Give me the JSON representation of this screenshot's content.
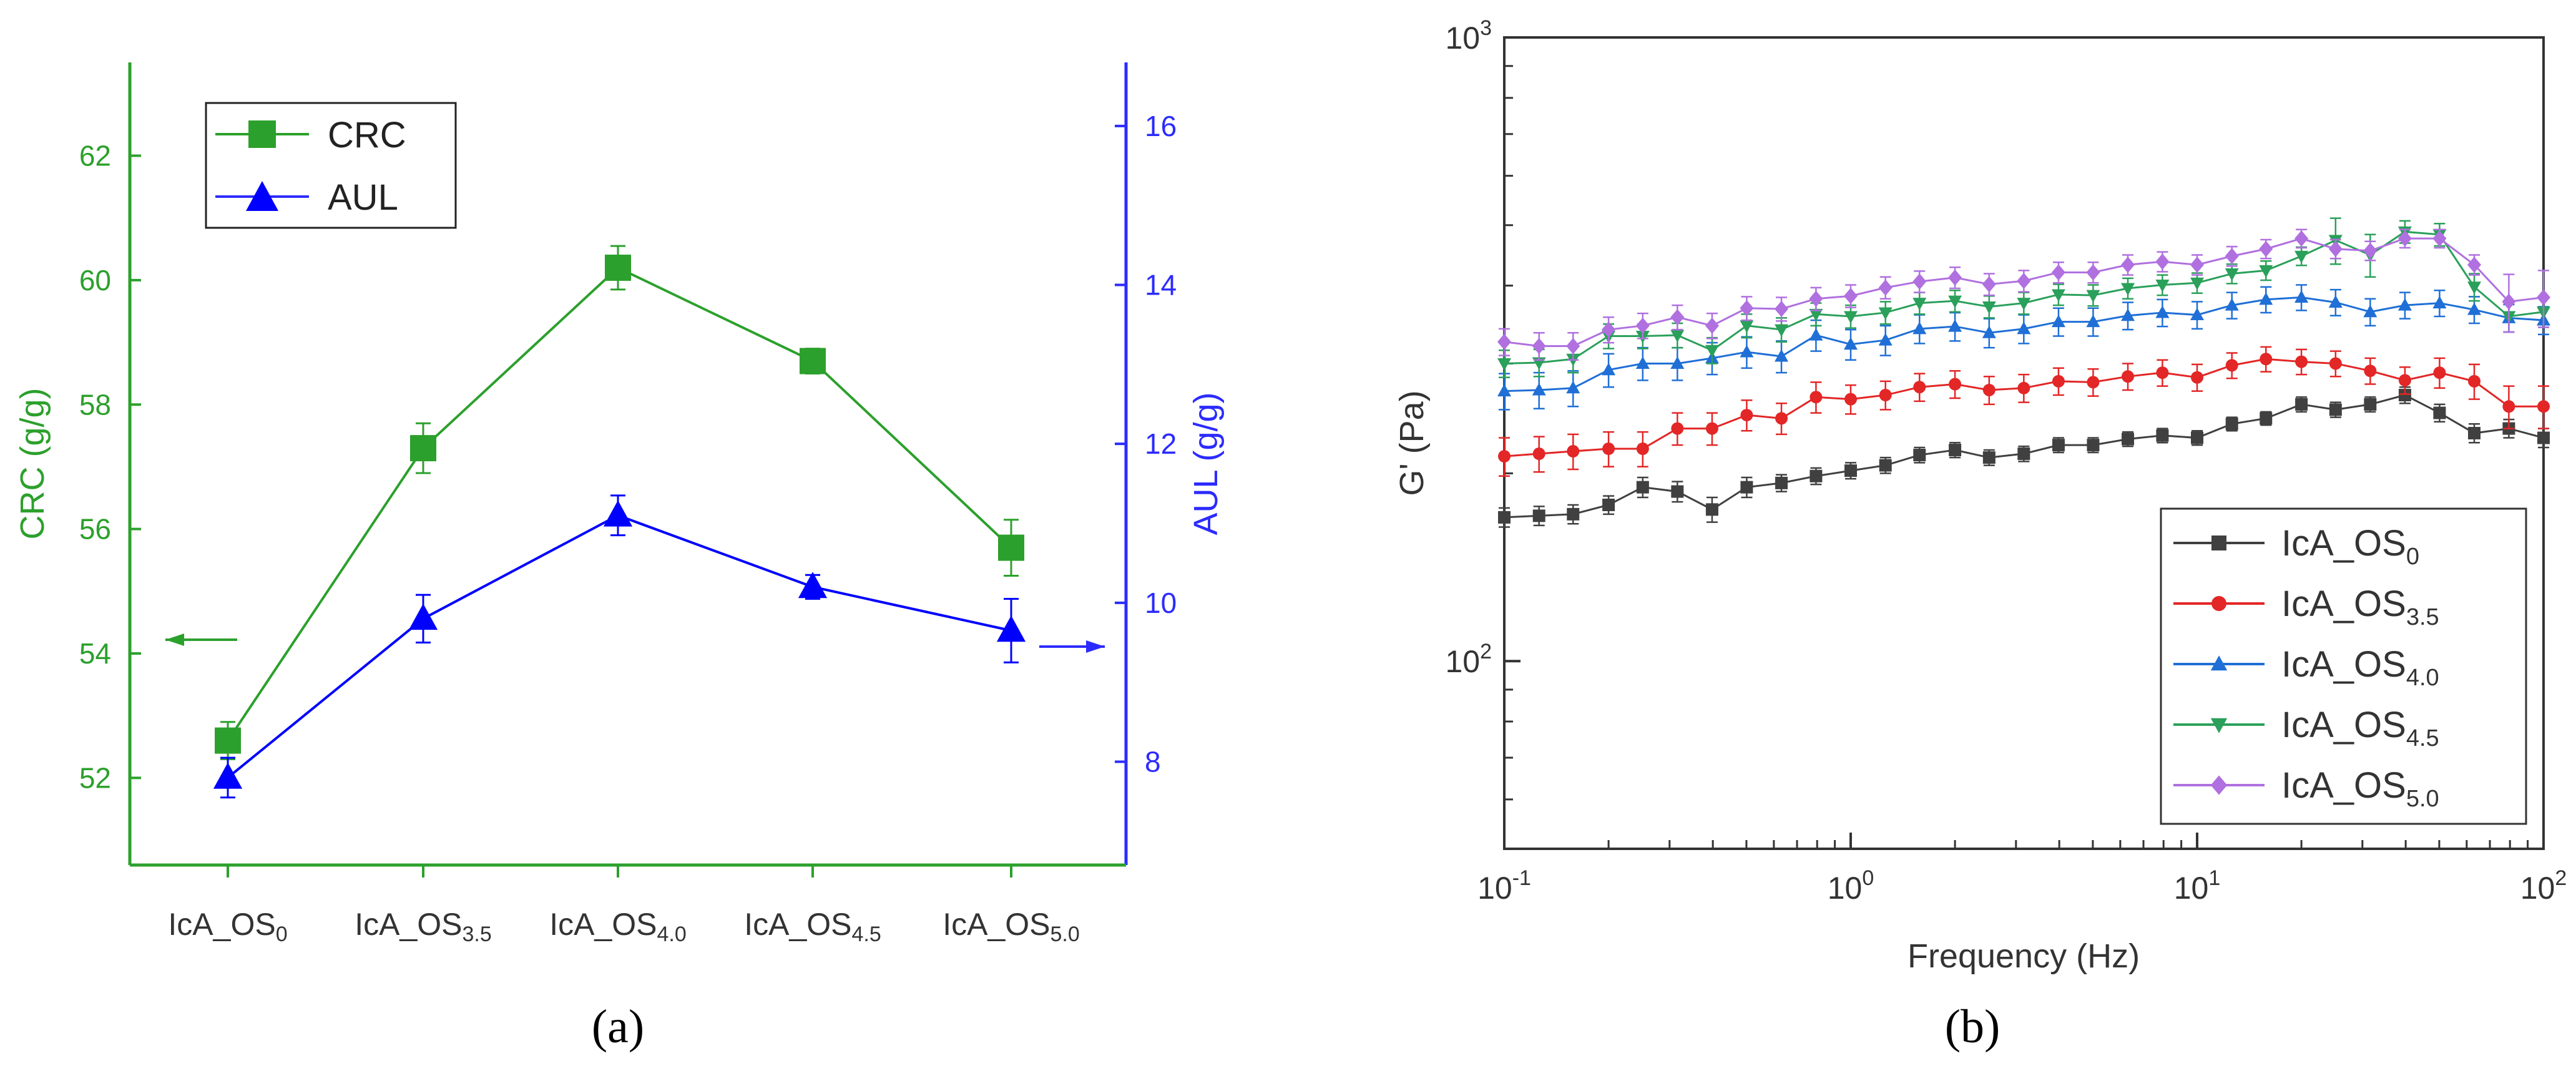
{
  "panel_labels": {
    "a": "(a)",
    "b": "(b)"
  },
  "colors": {
    "crc": "#2ca02c",
    "aul": "#0000ff",
    "aul_axis": "#2b2bff",
    "os0": "#404040",
    "os35": "#e32626",
    "os40": "#1f6fd6",
    "os45": "#2aa05a",
    "os50": "#b070e0"
  },
  "chart_data": [
    {
      "type": "line",
      "categories": [
        "IcA_OS0",
        "IcA_OS3.5",
        "IcA_OS4.0",
        "IcA_OS4.5",
        "IcA_OS5.0"
      ],
      "category_labels": [
        {
          "base": "IcA_OS",
          "sub": "0"
        },
        {
          "base": "IcA_OS",
          "sub": "3.5"
        },
        {
          "base": "IcA_OS",
          "sub": "4.0"
        },
        {
          "base": "IcA_OS",
          "sub": "4.5"
        },
        {
          "base": "IcA_OS",
          "sub": "5.0"
        }
      ],
      "y_left": {
        "label": "CRC (g/g)",
        "ylim": [
          50.6,
          63.5
        ],
        "ticks": [
          52,
          54,
          56,
          58,
          60,
          62
        ]
      },
      "y_right": {
        "label": "AUL (g/g)",
        "ylim": [
          6.7,
          16.8
        ],
        "ticks": [
          8,
          10,
          12,
          14,
          16
        ]
      },
      "series": [
        {
          "name": "CRC",
          "axis": "left",
          "marker": "square",
          "values": [
            52.6,
            57.3,
            60.2,
            58.7,
            55.7
          ],
          "errors": [
            0.3,
            0.4,
            0.35,
            0.2,
            0.45
          ]
        },
        {
          "name": "AUL",
          "axis": "right",
          "marker": "triangle",
          "values": [
            7.8,
            9.8,
            11.1,
            10.2,
            9.65
          ],
          "errors": [
            0.25,
            0.3,
            0.25,
            0.15,
            0.4
          ]
        }
      ],
      "legend": "top-left",
      "annotations": [
        "arrow-left toward CRC axis at IcA_OS0",
        "arrow-right toward AUL axis at IcA_OS5.0"
      ]
    },
    {
      "type": "line",
      "xlabel": "Frequency (Hz)",
      "ylabel": "G' (Pa)",
      "xscale": "log",
      "yscale": "log",
      "xlim": [
        0.1,
        100
      ],
      "ylim": [
        50,
        1000
      ],
      "x_ticks": [
        {
          "base": "10",
          "exp": "-1"
        },
        {
          "base": "10",
          "exp": "0"
        },
        {
          "base": "10",
          "exp": "1"
        },
        {
          "base": "10",
          "exp": "2"
        }
      ],
      "y_ticks": [
        {
          "base": "10",
          "exp": "2"
        },
        {
          "base": "10",
          "exp": "3"
        }
      ],
      "x": [
        0.1,
        0.126,
        0.158,
        0.2,
        0.251,
        0.316,
        0.398,
        0.501,
        0.631,
        0.794,
        1.0,
        1.26,
        1.58,
        2.0,
        2.51,
        3.16,
        3.98,
        5.01,
        6.31,
        7.94,
        10.0,
        12.6,
        15.8,
        20.0,
        25.1,
        31.6,
        39.8,
        50.1,
        63.1,
        79.4,
        100
      ],
      "series": [
        {
          "name": "IcA_OS0",
          "label_base": "IcA_OS",
          "label_sub": "0",
          "marker": "square",
          "values": [
            170,
            171,
            172,
            178,
            190,
            187,
            175,
            190,
            193,
            198,
            202,
            206,
            214,
            218,
            212,
            215,
            222,
            222,
            227,
            230,
            228,
            240,
            245,
            258,
            253,
            258,
            267,
            250,
            232,
            236,
            228
          ],
          "errors": [
            6,
            6,
            6,
            6,
            7,
            7,
            8,
            7,
            6,
            6,
            6,
            6,
            6,
            6,
            6,
            6,
            6,
            6,
            6,
            6,
            6,
            6,
            6,
            7,
            7,
            7,
            8,
            8,
            8,
            8,
            8
          ]
        },
        {
          "name": "IcA_OS3.5",
          "label_base": "IcA_OS",
          "label_sub": "3.5",
          "marker": "circle",
          "values": [
            213,
            215,
            217,
            219,
            219,
            236,
            236,
            248,
            245,
            265,
            263,
            267,
            275,
            278,
            272,
            274,
            281,
            280,
            286,
            290,
            285,
            298,
            305,
            302,
            300,
            292,
            282,
            290,
            281,
            256,
            256
          ],
          "errors": [
            15,
            14,
            14,
            14,
            14,
            14,
            14,
            14,
            14,
            15,
            14,
            14,
            14,
            14,
            14,
            14,
            14,
            14,
            14,
            14,
            14,
            14,
            14,
            14,
            14,
            14,
            14,
            16,
            18,
            20,
            20
          ]
        },
        {
          "name": "IcA_OS4.0",
          "label_base": "IcA_OS",
          "label_sub": "4.0",
          "marker": "triangle",
          "values": [
            271,
            272,
            274,
            293,
            300,
            300,
            306,
            313,
            308,
            333,
            322,
            327,
            341,
            344,
            336,
            341,
            350,
            350,
            358,
            362,
            359,
            372,
            380,
            383,
            376,
            363,
            372,
            375,
            366,
            355,
            352
          ],
          "errors": [
            18,
            18,
            18,
            18,
            18,
            18,
            18,
            18,
            18,
            19,
            18,
            18,
            18,
            18,
            18,
            18,
            18,
            18,
            18,
            18,
            18,
            18,
            18,
            18,
            18,
            18,
            18,
            18,
            18,
            18,
            18
          ]
        },
        {
          "name": "IcA_OS4.5",
          "label_base": "IcA_OS",
          "label_sub": "4.5",
          "marker": "triangle-down",
          "values": [
            300,
            301,
            305,
            332,
            332,
            333,
            315,
            345,
            340,
            360,
            357,
            362,
            375,
            378,
            370,
            375,
            387,
            386,
            396,
            401,
            404,
            418,
            423,
            446,
            473,
            448,
            488,
            483,
            398,
            357,
            363
          ],
          "errors": [
            15,
            15,
            15,
            15,
            15,
            15,
            15,
            15,
            15,
            15,
            15,
            15,
            15,
            15,
            15,
            15,
            15,
            15,
            15,
            15,
            15,
            15,
            15,
            15,
            40,
            35,
            20,
            20,
            20,
            20,
            20
          ]
        },
        {
          "name": "IcA_OS5.0",
          "label_base": "IcA_OS",
          "label_sub": "5.0",
          "marker": "diamond",
          "values": [
            325,
            320,
            320,
            340,
            345,
            356,
            345,
            368,
            367,
            381,
            385,
            397,
            406,
            412,
            402,
            407,
            420,
            420,
            432,
            437,
            432,
            446,
            458,
            476,
            458,
            455,
            476,
            476,
            432,
            377,
            383
          ],
          "errors": [
            16,
            16,
            16,
            16,
            16,
            16,
            16,
            16,
            16,
            16,
            16,
            16,
            16,
            16,
            16,
            16,
            16,
            16,
            16,
            16,
            16,
            16,
            16,
            16,
            16,
            16,
            16,
            16,
            16,
            40,
            40
          ]
        }
      ],
      "legend": "bottom-right"
    }
  ]
}
